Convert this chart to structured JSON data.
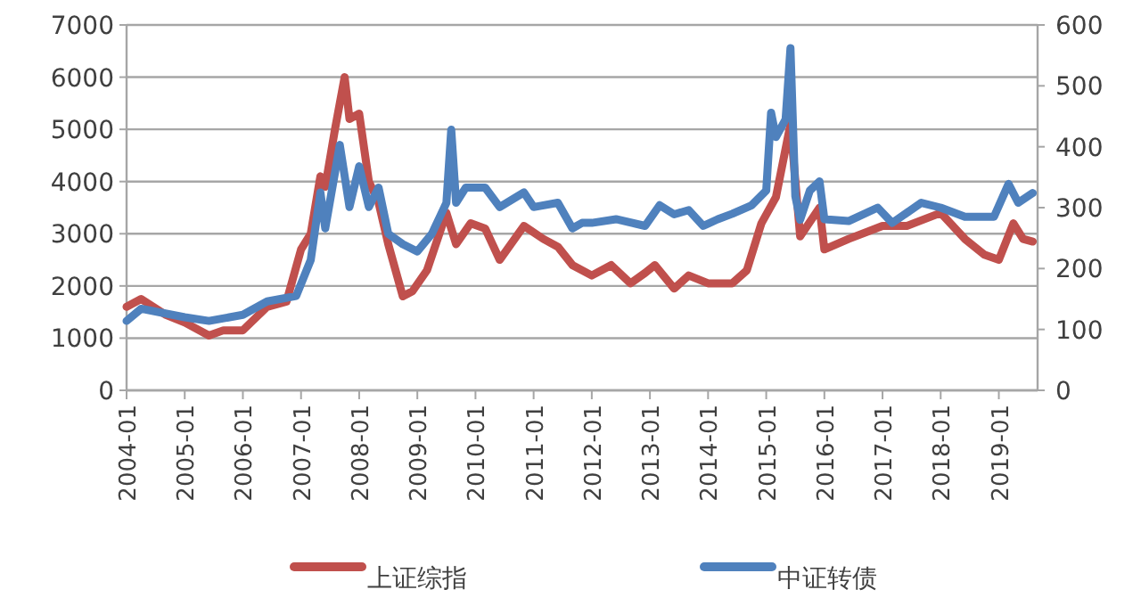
{
  "chart_data": {
    "type": "line",
    "xlim": [
      "2004-01",
      "2019-09"
    ],
    "xticks": [
      "2004-01",
      "2005-01",
      "2006-01",
      "2007-01",
      "2008-01",
      "2009-01",
      "2010-01",
      "2011-01",
      "2012-01",
      "2013-01",
      "2014-01",
      "2015-01",
      "2016-01",
      "2017-01",
      "2018-01",
      "2019-01"
    ],
    "ylim": [
      0,
      7000
    ],
    "yticks": [
      0,
      1000,
      2000,
      3000,
      4000,
      5000,
      6000,
      7000
    ],
    "y2lim": [
      0,
      600
    ],
    "y2ticks": [
      0,
      100,
      200,
      300,
      400,
      500,
      600
    ],
    "grid": "y",
    "legend": "bottom",
    "series": [
      {
        "name": "上证综指",
        "color": "#c0504d",
        "x": [
          "2004-01",
          "2004-04",
          "2004-09",
          "2005-01",
          "2005-06",
          "2005-09",
          "2006-01",
          "2006-06",
          "2006-10",
          "2007-01",
          "2007-03",
          "2007-05",
          "2007-06",
          "2007-08",
          "2007-10",
          "2007-11",
          "2008-01",
          "2008-03",
          "2008-05",
          "2008-07",
          "2008-10",
          "2008-12",
          "2009-03",
          "2009-07",
          "2009-09",
          "2009-12",
          "2010-03",
          "2010-06",
          "2010-11",
          "2011-03",
          "2011-06",
          "2011-09",
          "2012-01",
          "2012-05",
          "2012-09",
          "2012-12",
          "2013-02",
          "2013-06",
          "2013-09",
          "2014-01",
          "2014-06",
          "2014-09",
          "2014-12",
          "2015-03",
          "2015-06",
          "2015-08",
          "2015-12",
          "2016-01",
          "2016-06",
          "2017-01",
          "2017-06",
          "2018-01",
          "2018-06",
          "2018-10",
          "2019-01",
          "2019-04",
          "2019-06",
          "2019-08"
        ],
        "values": [
          1600,
          1750,
          1450,
          1300,
          1050,
          1150,
          1150,
          1600,
          1700,
          2700,
          3000,
          4100,
          3900,
          5000,
          6000,
          5200,
          5300,
          4000,
          3600,
          2800,
          1800,
          1900,
          2300,
          3400,
          2800,
          3200,
          3100,
          2500,
          3150,
          2900,
          2750,
          2400,
          2200,
          2400,
          2050,
          2250,
          2400,
          1950,
          2200,
          2050,
          2050,
          2300,
          3200,
          3700,
          5100,
          2950,
          3500,
          2700,
          2900,
          3150,
          3150,
          3400,
          2900,
          2600,
          2500,
          3200,
          2900,
          2850
        ]
      },
      {
        "name": "中证转债",
        "color": "#4f81bd",
        "axis": "y2",
        "x": [
          "2004-01",
          "2004-04",
          "2005-01",
          "2005-06",
          "2006-01",
          "2006-06",
          "2006-12",
          "2007-03",
          "2007-05",
          "2007-06",
          "2007-09",
          "2007-11",
          "2008-01",
          "2008-03",
          "2008-05",
          "2008-07",
          "2008-10",
          "2009-01",
          "2009-04",
          "2009-07",
          "2009-08",
          "2009-09",
          "2009-11",
          "2010-03",
          "2010-06",
          "2010-11",
          "2011-01",
          "2011-06",
          "2011-09",
          "2011-11",
          "2012-01",
          "2012-06",
          "2012-12",
          "2013-03",
          "2013-06",
          "2013-09",
          "2013-12",
          "2014-03",
          "2014-06",
          "2014-10",
          "2015-01",
          "2015-02",
          "2015-03",
          "2015-05",
          "2015-06",
          "2015-07",
          "2015-08",
          "2015-10",
          "2015-12",
          "2016-01",
          "2016-06",
          "2016-12",
          "2017-03",
          "2017-09",
          "2018-01",
          "2018-06",
          "2018-12",
          "2019-03",
          "2019-05",
          "2019-08"
        ],
        "values": [
          114,
          134,
          120,
          114,
          124,
          146,
          155,
          214,
          325,
          266,
          403,
          301,
          368,
          301,
          333,
          257,
          240,
          228,
          257,
          308,
          428,
          308,
          333,
          333,
          301,
          325,
          301,
          308,
          266,
          275,
          275,
          281,
          270,
          304,
          289,
          296,
          270,
          281,
          290,
          304,
          328,
          456,
          416,
          445,
          562,
          319,
          280,
          328,
          343,
          281,
          278,
          300,
          275,
          308,
          300,
          285,
          285,
          339,
          308,
          324
        ]
      }
    ]
  }
}
